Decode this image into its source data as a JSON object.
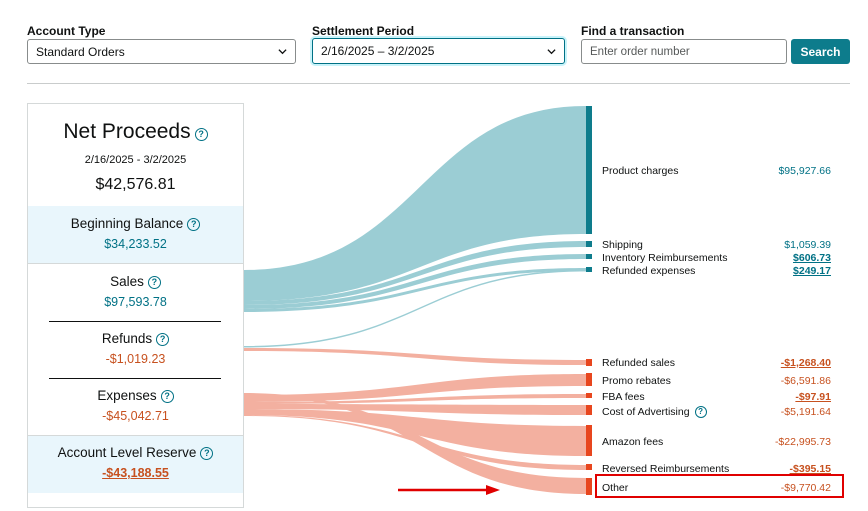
{
  "filters": {
    "account_type_label": "Account Type",
    "account_type_value": "Standard Orders",
    "settlement_label": "Settlement Period",
    "settlement_value": "2/16/2025 – 3/2/2025",
    "find_label": "Find a transaction",
    "find_placeholder": "Enter order number",
    "search_label": "Search"
  },
  "summary": {
    "title": "Net Proceeds",
    "dates": "2/16/2025 - 3/2/2025",
    "amount": "$42,576.81",
    "beginning_balance_label": "Beginning Balance",
    "beginning_balance_value": "$34,233.52",
    "sales_label": "Sales",
    "sales_value": "$97,593.78",
    "refunds_label": "Refunds",
    "refunds_value": "-$1,019.23",
    "expenses_label": "Expenses",
    "expenses_value": "-$45,042.71",
    "reserve_label": "Account Level Reserve",
    "reserve_value": "-$43,188.55"
  },
  "categories": [
    {
      "label": "Product charges",
      "value": "$95,927.66",
      "color": "#0e7c8c"
    },
    {
      "label": "Shipping",
      "value": "$1,059.39",
      "color": "#0e7c8c"
    },
    {
      "label": "Inventory Reimbursements",
      "value": "$606.73",
      "color": "#0e7c8c"
    },
    {
      "label": "Refunded expenses",
      "value": "$249.17",
      "color": "#0e7c8c"
    },
    {
      "label": "Refunded sales",
      "value": "-$1,268.40",
      "color": "#e8461e"
    },
    {
      "label": "Promo rebates",
      "value": "-$6,591.86",
      "color": "#e8461e"
    },
    {
      "label": "FBA fees",
      "value": "-$97.91",
      "color": "#e8461e"
    },
    {
      "label": "Cost of Advertising",
      "value": "-$5,191.64",
      "color": "#e8461e"
    },
    {
      "label": "Amazon fees",
      "value": "-$22,995.73",
      "color": "#e8461e"
    },
    {
      "label": "Reversed Reimbursements",
      "value": "-$395.15",
      "color": "#e8461e"
    },
    {
      "label": "Other",
      "value": "-$9,770.42",
      "color": "#e8461e"
    }
  ],
  "colors": {
    "accent": "#007185",
    "positive_flow": "#9bcdd4",
    "negative_flow": "#f3b0a0",
    "annotation": "#e00000"
  }
}
